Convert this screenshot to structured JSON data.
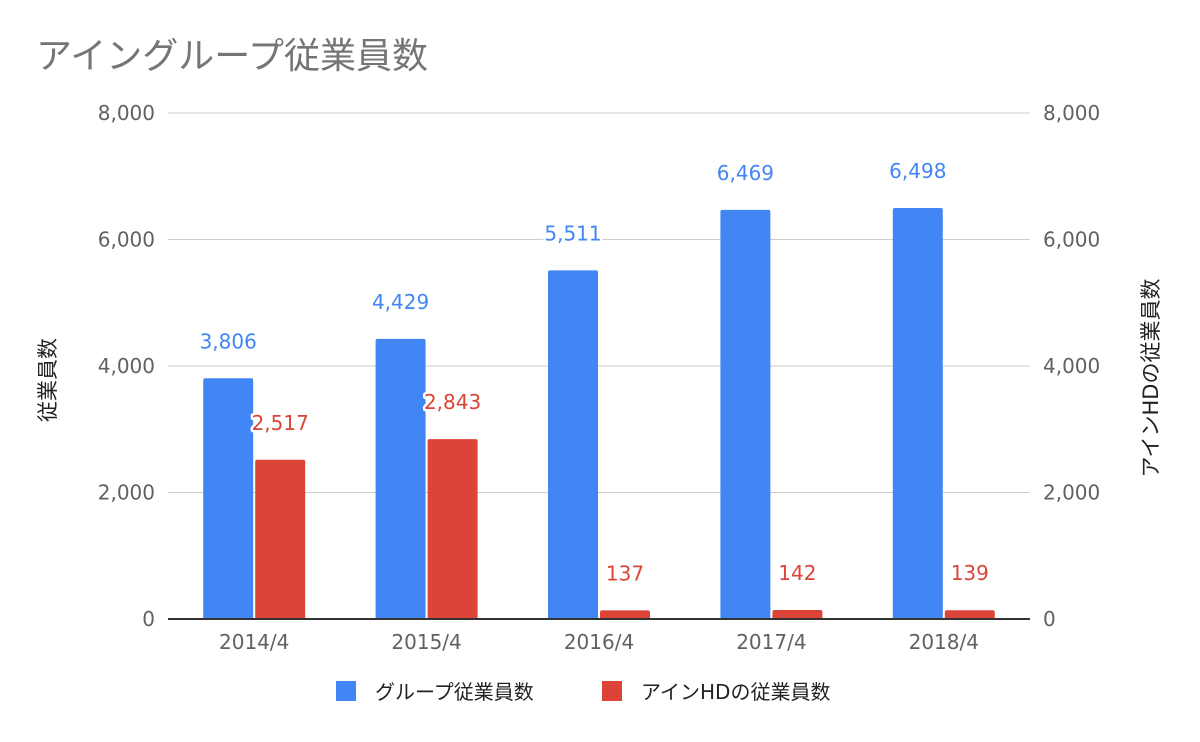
{
  "chart_data": {
    "type": "bar",
    "title": "アイングループ従業員数",
    "categories": [
      "2014/4",
      "2015/4",
      "2016/4",
      "2017/4",
      "2018/4"
    ],
    "series": [
      {
        "name": "グループ従業員数",
        "values": [
          3806,
          4429,
          5511,
          6469,
          6498
        ],
        "labels": [
          "3,806",
          "4,429",
          "5,511",
          "6,469",
          "6,498"
        ],
        "color": "#4285F4",
        "label_color": "#4285F4"
      },
      {
        "name": "アインHDの従業員数",
        "values": [
          2517,
          2843,
          137,
          142,
          139
        ],
        "labels": [
          "2,517",
          "2,843",
          "137",
          "142",
          "139"
        ],
        "color": "#DB4437",
        "label_color": "#DB4437"
      }
    ],
    "ylabel_left": "従業員数",
    "ylabel_right": "アインHDの従業員数",
    "ylim": [
      0,
      8000
    ],
    "yticks": [
      "0",
      "2,000",
      "4,000",
      "6,000",
      "8,000"
    ],
    "grid": true,
    "legend_position": "bottom"
  }
}
